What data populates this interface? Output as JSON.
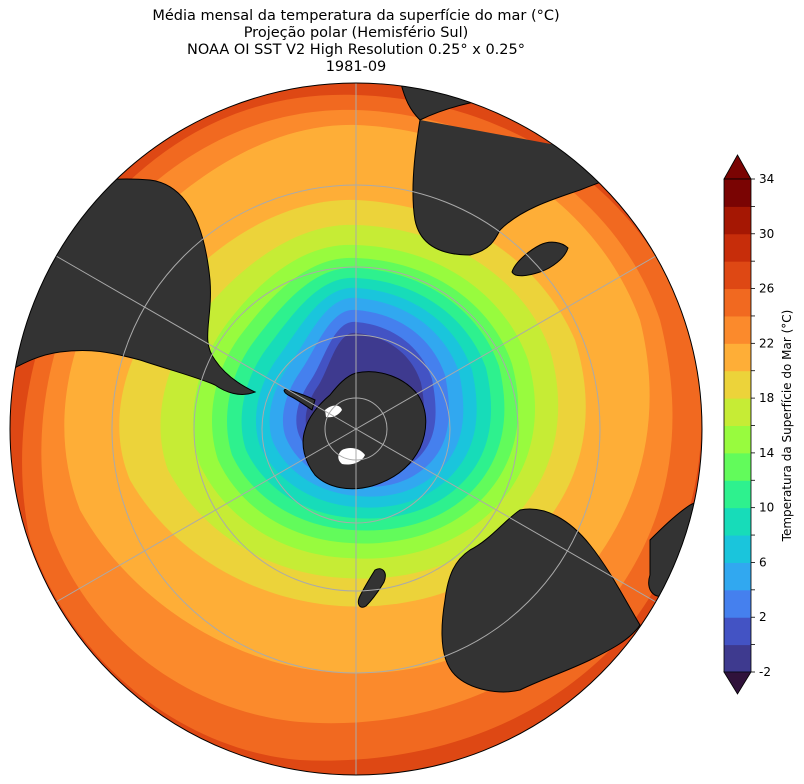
{
  "title": {
    "line1": "Média mensal da temperatura da superfície do mar (°C)",
    "line2": "Projeção polar (Hemisfério Sul)",
    "line3": "NOAA OI SST V2 High Resolution 0.25° x 0.25°",
    "line4": "1981-09"
  },
  "colorbar": {
    "label": "Temperatura da Superfície do Mar (°C)",
    "min": -2,
    "max": 34,
    "step": 2,
    "ticks": [
      "-2",
      "2",
      "6",
      "10",
      "14",
      "18",
      "22",
      "26",
      "30",
      "34"
    ],
    "colors": [
      "#3e3a8f",
      "#4353c4",
      "#4580ee",
      "#31a8f0",
      "#1ac5dc",
      "#17dcb9",
      "#2ef18e",
      "#62fb5b",
      "#98fb3e",
      "#c6ec35",
      "#ecd33a",
      "#feae37",
      "#fb8a2c",
      "#f16920",
      "#de4814",
      "#c72d0a",
      "#a51703",
      "#7a0403"
    ],
    "under_color": "#30123b",
    "over_color": "#7a0403"
  },
  "map": {
    "projection": "south-polar-stereographic",
    "land_color": "#333333",
    "ice_color": "#ffffff",
    "gridline_color": "#aaaaaa"
  }
}
